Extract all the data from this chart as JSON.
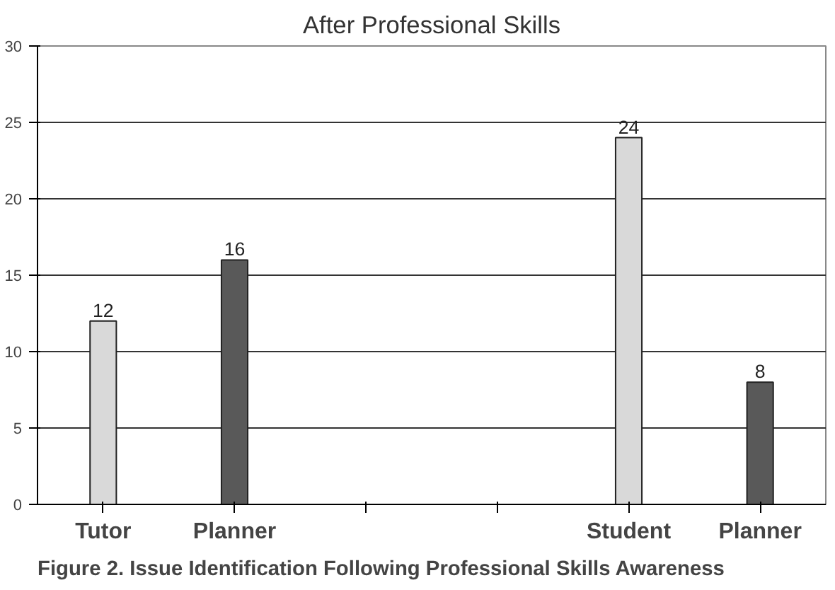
{
  "chart_data": {
    "type": "bar",
    "title": "After Professional Skills",
    "categories": [
      "Tutor",
      "Planner",
      null,
      null,
      "Student",
      "Planner"
    ],
    "values": [
      12,
      16,
      null,
      null,
      24,
      8
    ],
    "colors": [
      "#d9d9d9",
      "#595959",
      null,
      null,
      "#d9d9d9",
      "#595959"
    ],
    "ylim": [
      0,
      30
    ],
    "yticks": [
      0,
      5,
      10,
      15,
      20,
      25,
      30
    ],
    "grid": "y",
    "data_labels": true,
    "annotations": [
      "Figure 2. Issue Identification Following Professional Skills Awareness"
    ]
  }
}
